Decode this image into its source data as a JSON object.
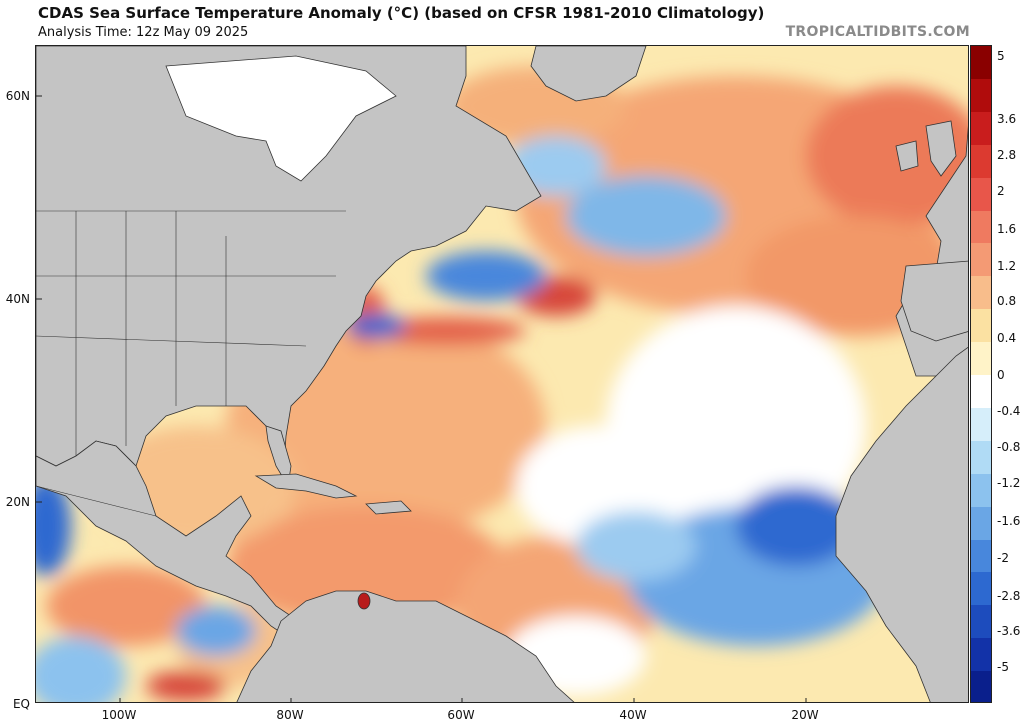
{
  "header": {
    "title": "CDAS Sea Surface Temperature Anomaly (°C) (based on CFSR 1981-2010 Climatology)",
    "subtitle": "Analysis Time: 12z May 09 2025",
    "brand": "TROPICALTIDBITS.COM"
  },
  "map": {
    "lat_labels": [
      "60N",
      "40N",
      "20N",
      "EQ"
    ],
    "lon_labels": [
      "100W",
      "80W",
      "60W",
      "40W",
      "20W"
    ],
    "colors": {
      "land": "#c4c4c4",
      "ice": "#ffffff",
      "warm_light": "#fbe7a1",
      "warm_mid": "#f7b777",
      "warm_strong": "#e8654e",
      "warm_extreme": "#b81c1c",
      "neutral": "#ffffff",
      "cool_light": "#c5e5f7",
      "cool_mid": "#7fb7e8",
      "cool_strong": "#2f6fd0",
      "cool_extreme": "#0a2a9a"
    }
  },
  "colorbar": {
    "labels": [
      "5",
      "3.6",
      "2.8",
      "2",
      "1.6",
      "1.2",
      "0.8",
      "0.4",
      "0",
      "-0.4",
      "-0.8",
      "-1.2",
      "-1.6",
      "-2",
      "-2.8",
      "-3.6",
      "-5"
    ],
    "colors": [
      "#8a0000",
      "#b00c0c",
      "#c91d1d",
      "#dc3a30",
      "#e8564a",
      "#ef7a60",
      "#f49a74",
      "#f8bd8b",
      "#fbe1a2",
      "#fff3c8",
      "#ffffff",
      "#d6eefa",
      "#b0dbf5",
      "#8cc2ee",
      "#6aa6e5",
      "#4887dc",
      "#2d69d0",
      "#1d4cbd",
      "#1232a8",
      "#0a1f8c"
    ]
  }
}
